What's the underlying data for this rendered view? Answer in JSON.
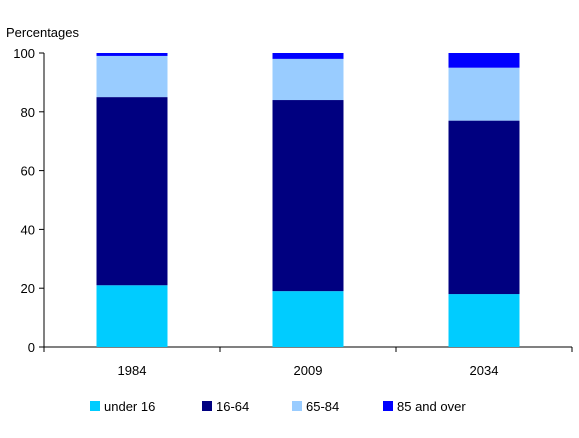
{
  "chart_data": {
    "type": "bar",
    "stacked": true,
    "ylabel": "Percentages",
    "ylim": [
      0,
      100
    ],
    "yticks": [
      0,
      20,
      40,
      60,
      80,
      100
    ],
    "grid": false,
    "legend_position": "bottom",
    "categories": [
      "1984",
      "2009",
      "2034"
    ],
    "series": [
      {
        "name": "under 16",
        "color": "#00ccff",
        "values": [
          21,
          19,
          18
        ]
      },
      {
        "name": "16-64",
        "color": "#000080",
        "values": [
          64,
          65,
          59
        ]
      },
      {
        "name": "65-84",
        "color": "#99ccff",
        "values": [
          14,
          14,
          18
        ]
      },
      {
        "name": "85 and over",
        "color": "#0000ff",
        "values": [
          1,
          2,
          5
        ]
      }
    ]
  }
}
